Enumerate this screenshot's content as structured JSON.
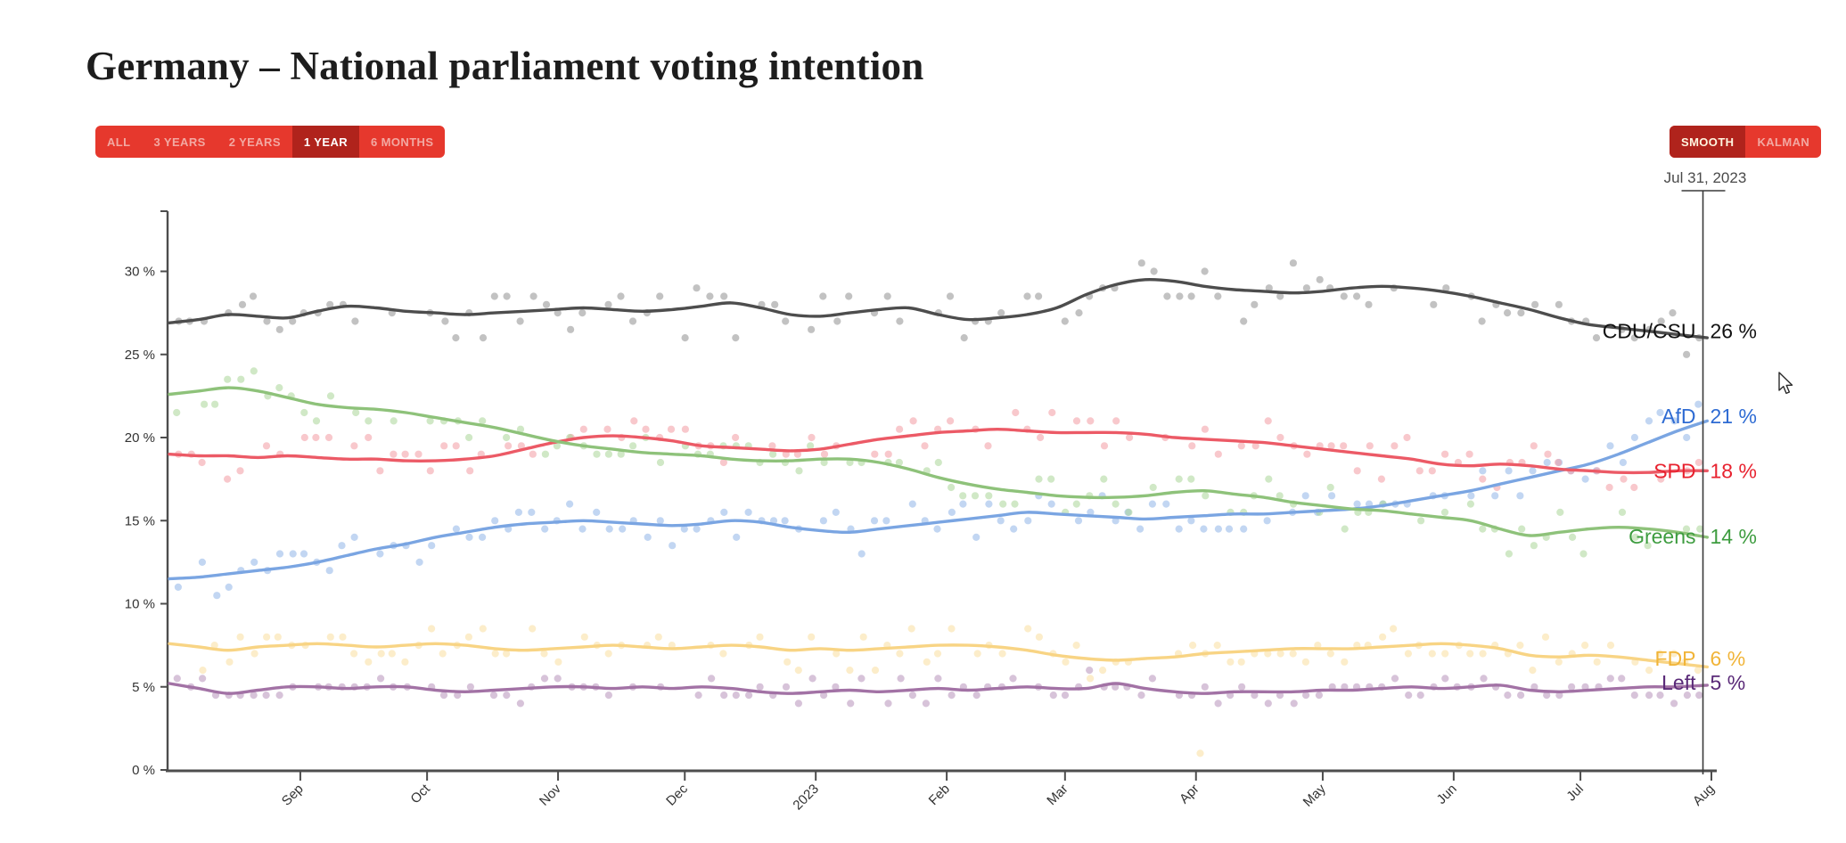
{
  "page": {
    "title": "Germany – National parliament voting intention"
  },
  "toolbar": {
    "range_buttons": [
      {
        "label": "ALL",
        "selected": false
      },
      {
        "label": "3 YEARS",
        "selected": false
      },
      {
        "label": "2 YEARS",
        "selected": false
      },
      {
        "label": "1 YEAR",
        "selected": true
      },
      {
        "label": "6 MONTHS",
        "selected": false
      }
    ],
    "smoothing_buttons": [
      {
        "label": "SMOOTH",
        "selected": true
      },
      {
        "label": "KALMAN",
        "selected": false
      }
    ],
    "colors": {
      "group_bg": "#e6382d",
      "selected_bg": "#b0231c",
      "text": "#f2a9a2",
      "selected_text": "#ffffff",
      "selected_text_smooth": "#fff6e0"
    }
  },
  "crosshair": {
    "date_label": "Jul 31, 2023",
    "day": 363,
    "color": "#3a3a3a"
  },
  "chart_data": {
    "type": "scatter+line",
    "title": "Germany – National parliament voting intention",
    "x_axis": {
      "start": "Aug 2022",
      "end": "Aug 2023",
      "tick_labels": [
        "Sep",
        "Oct",
        "Nov",
        "Dec",
        "2023",
        "Feb",
        "Mar",
        "Apr",
        "May",
        "Jun",
        "Jul",
        "Aug"
      ],
      "tick_day_offsets": [
        31,
        61,
        92,
        122,
        153,
        184,
        212,
        243,
        273,
        304,
        334,
        365
      ],
      "total_days": 365
    },
    "y_axis": {
      "tick_labels": [
        "0 %",
        "5 %",
        "10 %",
        "15 %",
        "20 %",
        "25 %",
        "30 %"
      ],
      "tick_values": [
        0,
        5,
        10,
        15,
        20,
        25,
        30
      ],
      "range": [
        0,
        33.6
      ],
      "grid": false
    },
    "legend_position": "right-edge-labels",
    "sample_interval_days": 7,
    "series": [
      {
        "name": "CDU/CSU",
        "end_value_label": "26 %",
        "label_percent": 26.4,
        "line_color": "#4d4d4d",
        "dot_color": "#8f8f8f",
        "label_color": "#111111",
        "scatter_spread": 2.0,
        "values": [
          26.9,
          27.1,
          27.4,
          27.3,
          27.2,
          27.6,
          27.9,
          27.8,
          27.6,
          27.5,
          27.4,
          27.5,
          27.6,
          27.7,
          27.8,
          27.7,
          27.6,
          27.7,
          27.9,
          28.1,
          27.8,
          27.4,
          27.3,
          27.5,
          27.7,
          27.8,
          27.4,
          27.1,
          27.2,
          27.4,
          27.8,
          28.6,
          29.2,
          29.5,
          29.4,
          29.1,
          28.9,
          28.8,
          28.7,
          28.8,
          29.0,
          29.1,
          29.0,
          28.8,
          28.5,
          28.1,
          27.7,
          27.2,
          26.8,
          26.6,
          26.4,
          26.2,
          26.0
        ]
      },
      {
        "name": "AfD",
        "end_value_label": "21 %",
        "label_percent": 21.3,
        "line_color": "#7aa5e2",
        "dot_color": "#8fb4e8",
        "label_color": "#2e6bd3",
        "scatter_spread": 1.6,
        "values": [
          11.5,
          11.6,
          11.8,
          12.0,
          12.2,
          12.5,
          12.9,
          13.3,
          13.6,
          14.0,
          14.3,
          14.6,
          14.8,
          14.9,
          15.0,
          14.9,
          14.8,
          14.7,
          14.8,
          15.0,
          14.9,
          14.6,
          14.4,
          14.3,
          14.5,
          14.7,
          14.9,
          15.1,
          15.3,
          15.5,
          15.4,
          15.3,
          15.2,
          15.1,
          15.2,
          15.3,
          15.4,
          15.4,
          15.5,
          15.6,
          15.7,
          15.9,
          16.2,
          16.5,
          16.8,
          17.2,
          17.6,
          18.0,
          18.4,
          19.0,
          19.7,
          20.4,
          21.0
        ]
      },
      {
        "name": "SPD",
        "end_value_label": "18 %",
        "label_percent": 18.0,
        "line_color": "#ec5a66",
        "dot_color": "#f29aa2",
        "label_color": "#e8222f",
        "scatter_spread": 1.6,
        "values": [
          19.0,
          18.9,
          18.9,
          18.8,
          18.9,
          18.8,
          18.7,
          18.7,
          18.6,
          18.6,
          18.7,
          18.9,
          19.3,
          19.7,
          20.0,
          20.1,
          20.0,
          19.8,
          19.5,
          19.4,
          19.3,
          19.2,
          19.3,
          19.6,
          19.9,
          20.1,
          20.3,
          20.4,
          20.5,
          20.4,
          20.3,
          20.3,
          20.3,
          20.2,
          20.0,
          19.9,
          19.8,
          19.7,
          19.5,
          19.3,
          19.1,
          18.9,
          18.7,
          18.4,
          18.3,
          18.4,
          18.3,
          18.1,
          18.0,
          17.9,
          17.9,
          18.0,
          18.0
        ]
      },
      {
        "name": "Greens",
        "end_value_label": "14 %",
        "label_percent": 14.05,
        "line_color": "#8ec27a",
        "dot_color": "#a9d598",
        "label_color": "#3d9c3f",
        "scatter_spread": 1.6,
        "values": [
          22.6,
          22.8,
          23.0,
          22.8,
          22.4,
          22.0,
          21.8,
          21.7,
          21.5,
          21.2,
          20.9,
          20.6,
          20.2,
          19.8,
          19.5,
          19.3,
          19.1,
          19.0,
          18.9,
          18.7,
          18.6,
          18.6,
          18.7,
          18.7,
          18.5,
          18.1,
          17.6,
          17.2,
          16.9,
          16.7,
          16.5,
          16.4,
          16.4,
          16.5,
          16.7,
          16.8,
          16.6,
          16.4,
          16.1,
          15.9,
          15.7,
          15.6,
          15.4,
          15.2,
          15.0,
          14.5,
          14.1,
          14.3,
          14.5,
          14.6,
          14.5,
          14.3,
          14.0
        ]
      },
      {
        "name": "FDP",
        "end_value_label": "6 %",
        "label_percent": 6.7,
        "line_color": "#f8d484",
        "dot_color": "#f9de9f",
        "label_color": "#f1b438",
        "scatter_spread": 1.4,
        "values": [
          7.6,
          7.4,
          7.2,
          7.4,
          7.5,
          7.6,
          7.5,
          7.4,
          7.5,
          7.6,
          7.5,
          7.3,
          7.2,
          7.3,
          7.4,
          7.5,
          7.4,
          7.3,
          7.4,
          7.5,
          7.4,
          7.2,
          7.3,
          7.2,
          7.3,
          7.4,
          7.5,
          7.5,
          7.4,
          7.2,
          6.9,
          6.7,
          6.6,
          6.7,
          6.8,
          7.0,
          7.1,
          7.2,
          7.3,
          7.3,
          7.3,
          7.4,
          7.5,
          7.6,
          7.5,
          7.3,
          6.9,
          6.8,
          6.9,
          6.8,
          6.6,
          6.4,
          6.2
        ]
      },
      {
        "name": "Left",
        "end_value_label": "5 %",
        "label_percent": 5.25,
        "line_color": "#a272a5",
        "dot_color": "#b792ba",
        "label_color": "#5a2a78",
        "scatter_spread": 1.0,
        "values": [
          5.2,
          4.9,
          4.6,
          4.8,
          5.0,
          5.0,
          4.9,
          5.0,
          5.0,
          4.8,
          4.7,
          4.8,
          4.9,
          5.0,
          5.0,
          4.9,
          5.0,
          4.9,
          5.0,
          4.9,
          4.7,
          4.6,
          4.7,
          4.8,
          4.7,
          4.8,
          4.9,
          4.8,
          4.9,
          5.0,
          4.9,
          4.9,
          5.2,
          4.9,
          4.7,
          4.6,
          4.7,
          4.7,
          4.7,
          4.8,
          4.8,
          4.9,
          5.0,
          4.9,
          5.0,
          5.1,
          4.8,
          4.7,
          4.8,
          4.9,
          5.0,
          5.0,
          5.1
        ]
      }
    ],
    "outlier_points": [
      {
        "series": "FDP",
        "day": 244,
        "value": 1.0
      }
    ]
  }
}
